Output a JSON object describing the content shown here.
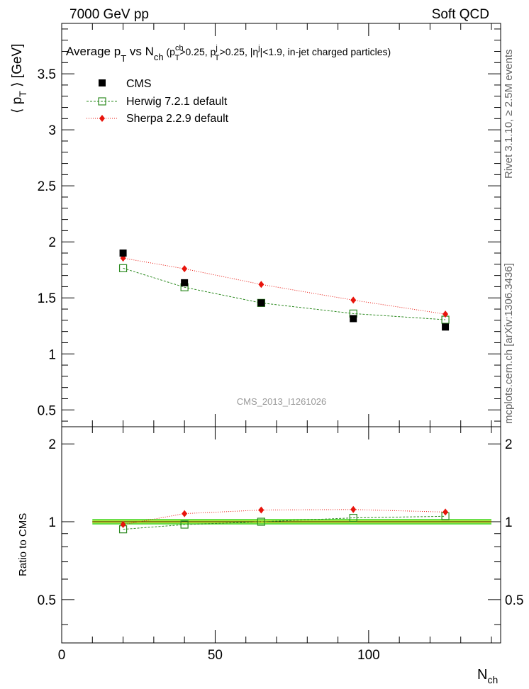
{
  "header": {
    "left": "7000 GeV pp",
    "right": "Soft QCD"
  },
  "side_labels": {
    "rivet": "Rivet 3.1.10, ≥ 2.5M events",
    "mcplots": "mcplots.cern.ch [arXiv:1306.3436]"
  },
  "watermark": "CMS_2013_I1261026",
  "colors": {
    "cms": "#000000",
    "herwig": "#2e8b22",
    "sherpa": "#e8140c",
    "band_green": "#66dd44",
    "band_yellow": "#ffff33"
  },
  "chart_data": [
    {
      "type": "scatter",
      "panel": "main",
      "title": "Average p_T vs N_ch (p_T^ch>0.25, p_T^j>0.25, |η^j|<1.9, in-jet charged particles)",
      "ylabel": "⟨ p_T ⟩ [GeV]",
      "xlabel": "",
      "xlim": [
        0,
        143
      ],
      "ylim": [
        0.35,
        3.95
      ],
      "yticks": [
        0.5,
        1,
        1.5,
        2,
        2.5,
        3,
        3.5
      ],
      "ytick_labels": [
        "0.5",
        "1",
        "1.5",
        "2",
        "2.5",
        "3",
        "3.5"
      ],
      "legend_position": "top-left",
      "series": [
        {
          "name": "CMS",
          "style": "marker",
          "x": [
            20,
            40,
            65,
            95,
            125
          ],
          "values": [
            1.9,
            1.635,
            1.455,
            1.315,
            1.24
          ]
        },
        {
          "name": "Herwig 7.2.1 default",
          "style": "dashed",
          "x": [
            20,
            40,
            65,
            95,
            125
          ],
          "values": [
            1.765,
            1.595,
            1.455,
            1.36,
            1.305
          ]
        },
        {
          "name": "Sherpa 2.2.9 default",
          "style": "dotted",
          "x": [
            20,
            40,
            65,
            95,
            125
          ],
          "values": [
            1.855,
            1.76,
            1.62,
            1.48,
            1.355
          ]
        }
      ]
    },
    {
      "type": "line",
      "panel": "ratio",
      "ylabel": "Ratio to CMS",
      "xlabel": "N_ch",
      "xlim": [
        0,
        143
      ],
      "ylim": [
        0.34,
        2.33
      ],
      "yticks": [
        0.5,
        1,
        2
      ],
      "ytick_labels": [
        "0.5",
        "1",
        "2"
      ],
      "xticks": [
        0,
        50,
        100
      ],
      "xtick_labels": [
        "0",
        "50",
        "100"
      ],
      "reference_band": {
        "x": [
          10,
          140
        ],
        "value": 1.0
      },
      "series": [
        {
          "name": "Herwig 7.2.1 default",
          "style": "dashed",
          "x": [
            20,
            40,
            65,
            95,
            125
          ],
          "values": [
            0.935,
            0.975,
            1.0,
            1.035,
            1.05
          ]
        },
        {
          "name": "Sherpa 2.2.9 default",
          "style": "dotted",
          "x": [
            20,
            40,
            65,
            95,
            125
          ],
          "values": [
            0.975,
            1.075,
            1.11,
            1.115,
            1.09
          ]
        }
      ]
    }
  ]
}
